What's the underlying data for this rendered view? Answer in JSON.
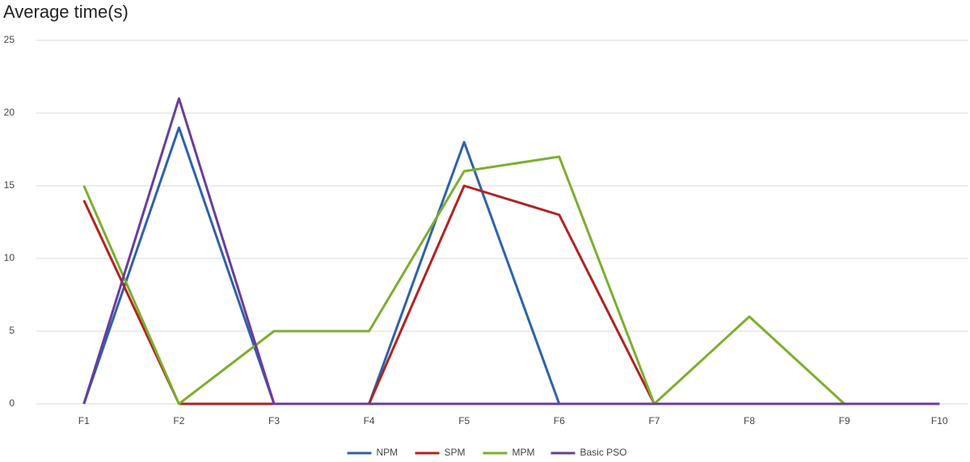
{
  "chart_data": {
    "type": "line",
    "title": "Average time(s)",
    "categories": [
      "F1",
      "F2",
      "F3",
      "F4",
      "F5",
      "F6",
      "F7",
      "F8",
      "F9",
      "F10"
    ],
    "series": [
      {
        "name": "NPM",
        "color": "#2e62a8",
        "values": [
          0,
          19,
          0,
          0,
          18,
          0,
          0,
          0,
          0,
          0
        ]
      },
      {
        "name": "SPM",
        "color": "#b22222",
        "values": [
          14,
          0,
          0,
          0,
          15,
          13,
          0,
          0,
          0,
          0
        ]
      },
      {
        "name": "MPM",
        "color": "#7dae2e",
        "values": [
          15,
          0,
          5,
          5,
          16,
          17,
          0,
          6,
          0,
          0
        ]
      },
      {
        "name": "Basic PSO",
        "color": "#6a3d9a",
        "values": [
          0,
          21,
          0,
          0,
          0,
          0,
          0,
          0,
          0,
          0
        ]
      }
    ],
    "ylim": [
      0,
      25
    ],
    "yticks": [
      0,
      5,
      10,
      15,
      20,
      25
    ],
    "grid": true,
    "legend": "bottom"
  }
}
